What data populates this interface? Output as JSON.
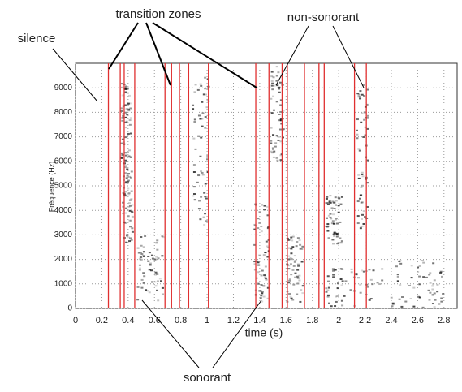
{
  "chart_data": {
    "type": "spectrogram",
    "xlabel": "time (s)",
    "ylabel": "Fréquence (Hz)",
    "xlim": [
      0,
      2.9
    ],
    "ylim": [
      0,
      10000
    ],
    "xticks": [
      0,
      0.2,
      0.4,
      0.6,
      0.8,
      1,
      1.2,
      1.4,
      1.6,
      1.8,
      2,
      2.2,
      2.4,
      2.6,
      2.8
    ],
    "yticks": [
      0,
      1000,
      2000,
      3000,
      4000,
      5000,
      6000,
      7000,
      8000,
      9000
    ],
    "grid": true,
    "boundary_color": "#e03030",
    "boundaries": [
      0.25,
      0.34,
      0.37,
      0.45,
      0.68,
      0.73,
      0.79,
      0.86,
      1.01,
      1.37,
      1.47,
      1.57,
      1.61,
      1.74,
      1.85,
      1.89,
      2.12,
      2.21
    ],
    "annotations": [
      "transition zones",
      "non-sonorant",
      "silence",
      "sonorant"
    ]
  }
}
